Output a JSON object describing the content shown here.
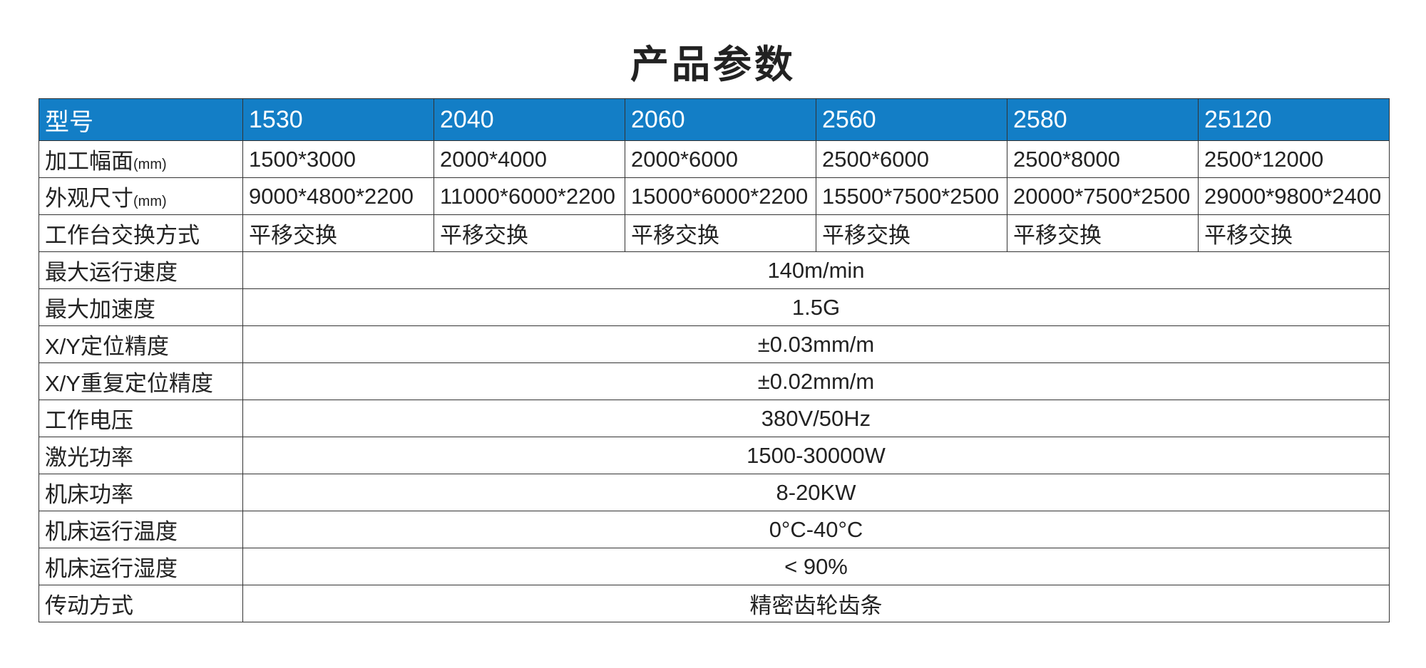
{
  "title": "产品参数",
  "table": {
    "header": [
      "型号",
      "1530",
      "2040",
      "2060",
      "2560",
      "2580",
      "25120"
    ],
    "rows": [
      {
        "label": "加工幅面",
        "unit": "(mm)",
        "values": [
          "1500*3000",
          "2000*4000",
          "2000*6000",
          "2500*6000",
          "2500*8000",
          "2500*12000"
        ]
      },
      {
        "label": "外观尺寸",
        "unit": "(mm)",
        "values": [
          "9000*4800*2200",
          "11000*6000*2200",
          "15000*6000*2200",
          "15500*7500*2500",
          "20000*7500*2500",
          "29000*9800*2400"
        ]
      },
      {
        "label": "工作台交换方式",
        "values": [
          "平移交换",
          "平移交换",
          "平移交换",
          "平移交换",
          "平移交换",
          "平移交换"
        ]
      },
      {
        "label": "最大运行速度",
        "value": "140m/min"
      },
      {
        "label": "最大加速度",
        "value": "1.5G"
      },
      {
        "label": "X/Y定位精度",
        "value": "±0.03mm/m"
      },
      {
        "label": "X/Y重复定位精度",
        "value": "±0.02mm/m"
      },
      {
        "label": "工作电压",
        "value": "380V/50Hz"
      },
      {
        "label": "激光功率",
        "value": "1500-30000W"
      },
      {
        "label": "机床功率",
        "value": "8-20KW"
      },
      {
        "label": "机床运行温度",
        "value": "0°C-40°C"
      },
      {
        "label": "机床运行湿度",
        "value": "< 90%"
      },
      {
        "label": "传动方式",
        "value": "精密齿轮齿条"
      }
    ]
  }
}
